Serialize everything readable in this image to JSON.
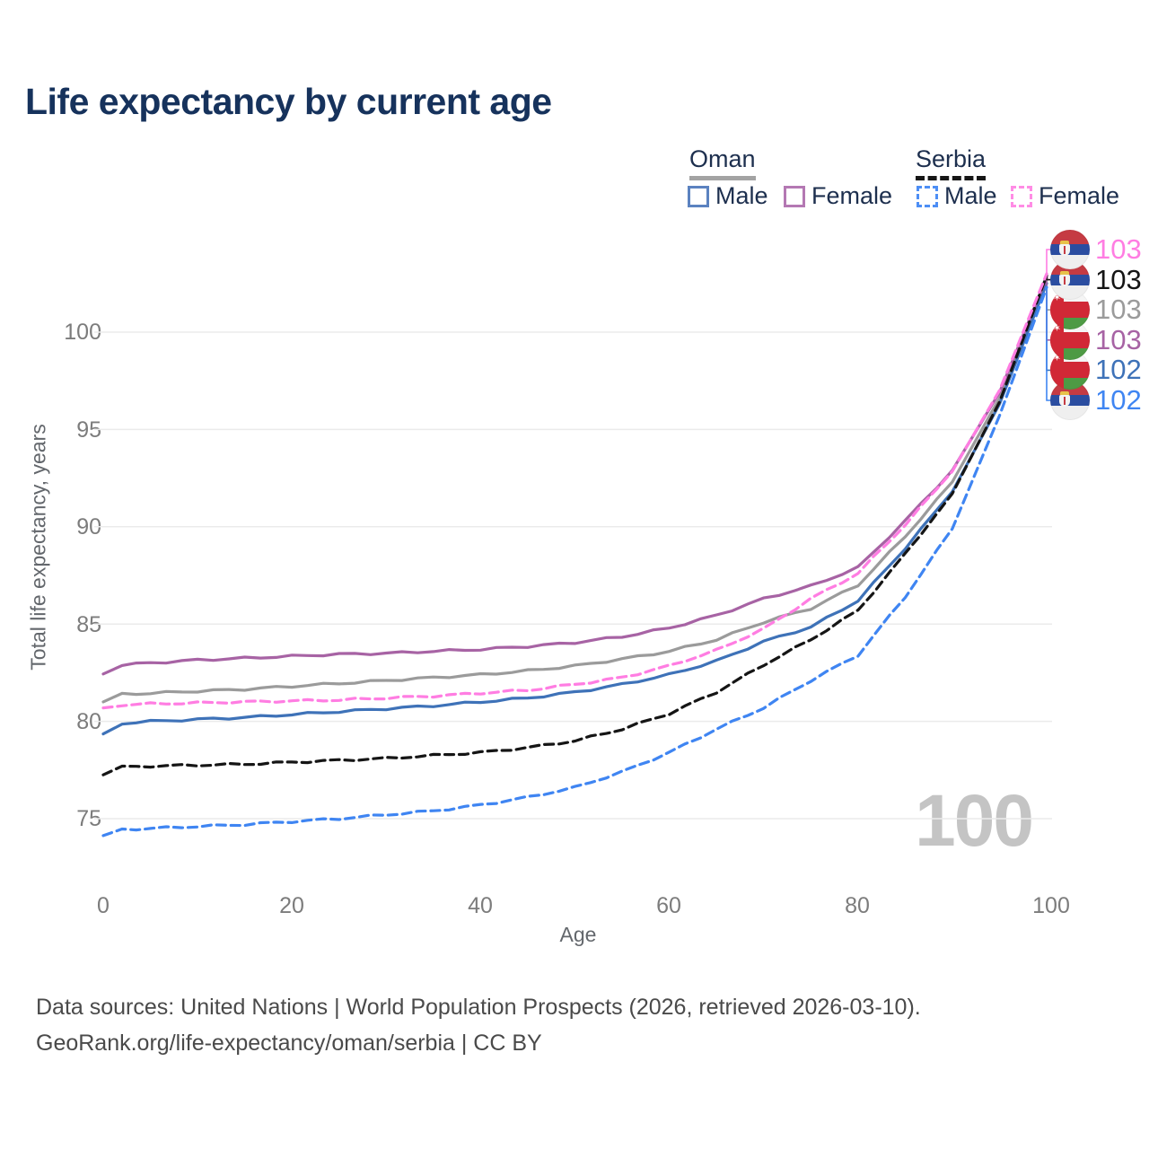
{
  "title": "Life expectancy by current age",
  "legend": {
    "groups": [
      {
        "label": "Oman",
        "style": "solid",
        "items": [
          {
            "label": "Male"
          },
          {
            "label": "Female"
          }
        ]
      },
      {
        "label": "Serbia",
        "style": "dashed",
        "items": [
          {
            "label": "Male"
          },
          {
            "label": "Female"
          }
        ]
      }
    ]
  },
  "footer": {
    "line1": "Data sources: United Nations | World Population Prospects (2026, retrieved 2026-03-10).",
    "line2": "GeoRank.org/life-expectancy/oman/serbia | CC BY"
  },
  "chart_data": {
    "type": "line",
    "title": "Life expectancy by current age",
    "xlabel": "Age",
    "ylabel": "Total life expectancy, years",
    "xlim": [
      0,
      100
    ],
    "ylim": [
      73.5,
      103.5
    ],
    "xticks": [
      0,
      20,
      40,
      60,
      80,
      100
    ],
    "yticks": [
      75,
      80,
      85,
      90,
      95,
      100
    ],
    "grid": "horizontal-only",
    "legend_position": "top-right",
    "watermark": "100",
    "colors": {
      "oman_total": "#9b9b9b",
      "oman_male": "#3e72b8",
      "oman_female": "#a763a4",
      "serbia_total": "#151515",
      "serbia_male": "#3f85f2",
      "serbia_female": "#ff7de2"
    },
    "series": [
      {
        "name": "Oman Total",
        "country": "Oman",
        "sex": "All",
        "color": "#9b9b9b",
        "dash": "solid",
        "end_label": "103",
        "label_row": 2,
        "points": [
          [
            0,
            81.0
          ],
          [
            2,
            81.4
          ],
          [
            5,
            81.45
          ],
          [
            10,
            81.55
          ],
          [
            15,
            81.65
          ],
          [
            20,
            81.8
          ],
          [
            25,
            81.95
          ],
          [
            30,
            82.1
          ],
          [
            35,
            82.25
          ],
          [
            40,
            82.4
          ],
          [
            45,
            82.6
          ],
          [
            50,
            82.85
          ],
          [
            55,
            83.2
          ],
          [
            60,
            83.6
          ],
          [
            65,
            84.2
          ],
          [
            70,
            85.1
          ],
          [
            75,
            85.8
          ],
          [
            80,
            87.0
          ],
          [
            85,
            89.5
          ],
          [
            90,
            92.3
          ],
          [
            95,
            96.6
          ],
          [
            100,
            102.7
          ]
        ]
      },
      {
        "name": "Oman Male",
        "country": "Oman",
        "sex": "Male",
        "color": "#3e72b8",
        "dash": "solid",
        "end_label": "102",
        "label_row": 4,
        "points": [
          [
            0,
            79.3
          ],
          [
            2,
            79.9
          ],
          [
            5,
            80.0
          ],
          [
            10,
            80.1
          ],
          [
            15,
            80.2
          ],
          [
            20,
            80.35
          ],
          [
            25,
            80.5
          ],
          [
            30,
            80.65
          ],
          [
            35,
            80.8
          ],
          [
            40,
            81.0
          ],
          [
            45,
            81.2
          ],
          [
            50,
            81.5
          ],
          [
            55,
            81.9
          ],
          [
            60,
            82.4
          ],
          [
            65,
            83.1
          ],
          [
            70,
            84.1
          ],
          [
            75,
            84.85
          ],
          [
            80,
            86.2
          ],
          [
            85,
            88.9
          ],
          [
            90,
            91.8
          ],
          [
            95,
            96.3
          ],
          [
            100,
            102.5
          ]
        ]
      },
      {
        "name": "Oman Female",
        "country": "Oman",
        "sex": "Female",
        "color": "#a763a4",
        "dash": "solid",
        "end_label": "103",
        "label_row": 3,
        "points": [
          [
            0,
            82.45
          ],
          [
            2,
            82.9
          ],
          [
            5,
            83.0
          ],
          [
            10,
            83.15
          ],
          [
            15,
            83.25
          ],
          [
            20,
            83.35
          ],
          [
            25,
            83.45
          ],
          [
            30,
            83.5
          ],
          [
            35,
            83.6
          ],
          [
            40,
            83.7
          ],
          [
            45,
            83.85
          ],
          [
            50,
            84.05
          ],
          [
            55,
            84.35
          ],
          [
            60,
            84.8
          ],
          [
            65,
            85.45
          ],
          [
            70,
            86.3
          ],
          [
            75,
            86.95
          ],
          [
            80,
            87.9
          ],
          [
            85,
            90.3
          ],
          [
            90,
            92.9
          ],
          [
            95,
            96.9
          ],
          [
            100,
            102.8
          ]
        ]
      },
      {
        "name": "Serbia Total",
        "country": "Serbia",
        "sex": "All",
        "color": "#151515",
        "dash": "dashed",
        "end_label": "103",
        "label_row": 1,
        "points": [
          [
            0,
            77.3
          ],
          [
            2,
            77.65
          ],
          [
            5,
            77.7
          ],
          [
            10,
            77.75
          ],
          [
            15,
            77.8
          ],
          [
            20,
            77.9
          ],
          [
            25,
            78.0
          ],
          [
            30,
            78.1
          ],
          [
            35,
            78.25
          ],
          [
            40,
            78.4
          ],
          [
            45,
            78.65
          ],
          [
            50,
            79.0
          ],
          [
            55,
            79.6
          ],
          [
            60,
            80.4
          ],
          [
            65,
            81.5
          ],
          [
            70,
            82.9
          ],
          [
            75,
            84.2
          ],
          [
            80,
            85.7
          ],
          [
            85,
            88.6
          ],
          [
            90,
            91.7
          ],
          [
            95,
            96.4
          ],
          [
            100,
            102.9
          ]
        ]
      },
      {
        "name": "Serbia Male",
        "country": "Serbia",
        "sex": "Male",
        "color": "#3f85f2",
        "dash": "dashed",
        "end_label": "102",
        "label_row": 5,
        "points": [
          [
            0,
            74.1
          ],
          [
            2,
            74.45
          ],
          [
            5,
            74.5
          ],
          [
            10,
            74.6
          ],
          [
            15,
            74.7
          ],
          [
            20,
            74.85
          ],
          [
            25,
            75.0
          ],
          [
            30,
            75.2
          ],
          [
            35,
            75.4
          ],
          [
            40,
            75.7
          ],
          [
            45,
            76.1
          ],
          [
            50,
            76.6
          ],
          [
            55,
            77.4
          ],
          [
            60,
            78.4
          ],
          [
            65,
            79.6
          ],
          [
            70,
            80.7
          ],
          [
            75,
            82.1
          ],
          [
            80,
            83.4
          ],
          [
            85,
            86.4
          ],
          [
            90,
            89.9
          ],
          [
            95,
            95.7
          ],
          [
            100,
            102.3
          ]
        ]
      },
      {
        "name": "Serbia Female",
        "country": "Serbia",
        "sex": "Female",
        "color": "#ff7de2",
        "dash": "dashed",
        "end_label": "103",
        "label_row": 0,
        "points": [
          [
            0,
            80.65
          ],
          [
            2,
            80.85
          ],
          [
            5,
            80.9
          ],
          [
            10,
            80.95
          ],
          [
            15,
            81.0
          ],
          [
            20,
            81.05
          ],
          [
            25,
            81.1
          ],
          [
            30,
            81.2
          ],
          [
            35,
            81.3
          ],
          [
            40,
            81.45
          ],
          [
            45,
            81.6
          ],
          [
            50,
            81.9
          ],
          [
            55,
            82.25
          ],
          [
            60,
            82.85
          ],
          [
            65,
            83.65
          ],
          [
            70,
            84.75
          ],
          [
            75,
            86.3
          ],
          [
            80,
            87.6
          ],
          [
            85,
            90.1
          ],
          [
            90,
            92.85
          ],
          [
            95,
            97.0
          ],
          [
            100,
            103.0
          ]
        ]
      }
    ]
  }
}
